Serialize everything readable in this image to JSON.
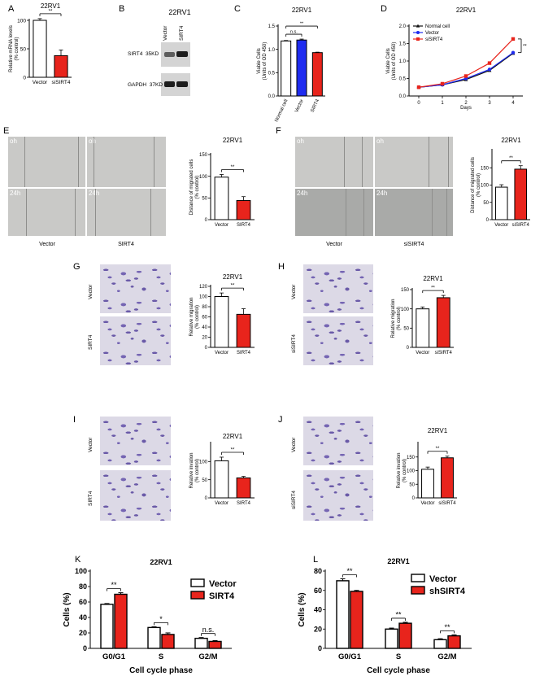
{
  "labels": {
    "A": "A",
    "B": "B",
    "C": "C",
    "D": "D",
    "E": "E",
    "F": "F",
    "G": "G",
    "H": "H",
    "I": "I",
    "J": "J",
    "K": "K",
    "L": "L"
  },
  "cell_line": "22RV1",
  "western": {
    "lanes": [
      "Vector",
      "SIRT4"
    ],
    "rows": [
      {
        "name": "SIRT4",
        "kd": "35KD"
      },
      {
        "name": "GAPDH",
        "kd": "37KD"
      }
    ]
  },
  "scratch": {
    "E": {
      "top": "oh",
      "bottom": "24h",
      "left": "Vector",
      "right": "SIRT4"
    },
    "F": {
      "top": "oh",
      "bottom": "24h",
      "left": "Vector",
      "right": "siSIRT4"
    }
  },
  "micro_labels": {
    "G": [
      "Vector",
      "SIRT4"
    ],
    "H": [
      "Vector",
      "siSIRT4"
    ],
    "I": [
      "Vector",
      "SIRT4"
    ],
    "J": [
      "Vector",
      "siSIRT4"
    ]
  },
  "chart_data": [
    {
      "panel": "A",
      "type": "bar",
      "title": "22RV1",
      "ylabel": "Relative mRNA levels\n(% control)",
      "categories": [
        "Vector",
        "siSIRT4"
      ],
      "values": [
        100,
        38
      ],
      "errors": [
        3,
        10
      ],
      "colors": [
        "#ffffff",
        "#e8241c"
      ],
      "ylim": [
        0,
        100
      ],
      "yticks": [
        0,
        50,
        100
      ],
      "sig": "**"
    },
    {
      "panel": "C",
      "type": "bar",
      "title": "22RV1",
      "ylabel": "Viable Cells\n(Units of OD 450)",
      "categories": [
        "Normal cell",
        "Vector",
        "SIRT4"
      ],
      "values": [
        1.18,
        1.2,
        0.93
      ],
      "errors": [
        0.01,
        0.02,
        0.01
      ],
      "colors": [
        "#ffffff",
        "#1f2cf0",
        "#e8241c"
      ],
      "ylim": [
        0,
        1.5
      ],
      "yticks": [
        0,
        0.5,
        1.0,
        1.5
      ],
      "sig": [
        "n.s.",
        "**"
      ]
    },
    {
      "panel": "D",
      "type": "line",
      "title": "22RV1",
      "xlabel": "Days",
      "ylabel": "Viable Cells\n(Units of OD 450)",
      "x": [
        0,
        1,
        2,
        3,
        4
      ],
      "ylim": [
        0,
        2.0
      ],
      "yticks": [
        0,
        0.5,
        1.0,
        1.5,
        2.0
      ],
      "series": [
        {
          "name": "Normal cell",
          "values": [
            0.25,
            0.32,
            0.47,
            0.73,
            1.22
          ],
          "color": "#111111",
          "marker": "triangle"
        },
        {
          "name": "Vector",
          "values": [
            0.25,
            0.32,
            0.5,
            0.76,
            1.24
          ],
          "color": "#1f2cf0",
          "marker": "circle"
        },
        {
          "name": "siSIRT4",
          "values": [
            0.25,
            0.35,
            0.57,
            0.94,
            1.63
          ],
          "color": "#e8241c",
          "marker": "square"
        }
      ],
      "sig": "**"
    },
    {
      "panel": "E",
      "type": "bar",
      "title": "22RV1",
      "ylabel": "Distance of migrated cells\n(% control)",
      "categories": [
        "Vector",
        "SIRT4"
      ],
      "values": [
        98,
        44
      ],
      "errors": [
        6,
        9
      ],
      "colors": [
        "#ffffff",
        "#e8241c"
      ],
      "ylim": [
        0,
        150
      ],
      "yticks": [
        0,
        50,
        100,
        150
      ],
      "sig": "**"
    },
    {
      "panel": "F",
      "type": "bar",
      "title": "22RV1",
      "ylabel": "Distance of migrated cells\n(% control)",
      "categories": [
        "Vector",
        "siSIRT4"
      ],
      "values": [
        94,
        146
      ],
      "errors": [
        7,
        10
      ],
      "colors": [
        "#ffffff",
        "#e8241c"
      ],
      "ylim": [
        0,
        200
      ],
      "yticks": [
        0,
        50,
        100,
        150
      ],
      "sig": "**"
    },
    {
      "panel": "G",
      "type": "bar",
      "title": "22RV1",
      "ylabel": "Relative migration\n(% control)",
      "categories": [
        "Vector",
        "SIRT4"
      ],
      "values": [
        100,
        65
      ],
      "errors": [
        7,
        11
      ],
      "colors": [
        "#ffffff",
        "#e8241c"
      ],
      "ylim": [
        0,
        120
      ],
      "yticks": [
        0,
        20,
        40,
        60,
        80,
        100,
        120
      ],
      "sig": "**"
    },
    {
      "panel": "H",
      "type": "bar",
      "title": "22RV1",
      "ylabel": "Relative migration\n(% control)",
      "categories": [
        "Vector",
        "siSIRT4"
      ],
      "values": [
        100,
        129
      ],
      "errors": [
        5,
        6
      ],
      "colors": [
        "#ffffff",
        "#e8241c"
      ],
      "ylim": [
        0,
        150
      ],
      "yticks": [
        0,
        50,
        100,
        150
      ],
      "sig": "**"
    },
    {
      "panel": "I",
      "type": "bar",
      "title": "22RV1",
      "ylabel": "Relative invation\n(% control)",
      "categories": [
        "Vector",
        "SIRT4"
      ],
      "values": [
        102,
        55
      ],
      "errors": [
        10,
        4
      ],
      "colors": [
        "#ffffff",
        "#e8241c"
      ],
      "ylim": [
        0,
        150
      ],
      "yticks": [
        0,
        50,
        100
      ],
      "sig": "**"
    },
    {
      "panel": "J",
      "type": "bar",
      "title": "22RV1",
      "ylabel": "Relative invation\n(% control)",
      "categories": [
        "Vector",
        "siSIRT4"
      ],
      "values": [
        105,
        147
      ],
      "errors": [
        8,
        6
      ],
      "colors": [
        "#ffffff",
        "#e8241c"
      ],
      "ylim": [
        0,
        200
      ],
      "yticks": [
        0,
        50,
        100,
        150
      ],
      "sig": "**"
    },
    {
      "panel": "K",
      "type": "bar",
      "title": "22RV1",
      "xlabel": "Cell cycle  phase",
      "ylabel": "Cells (%)",
      "categories": [
        "G0/G1",
        "S",
        "G2/M"
      ],
      "ylim": [
        0,
        100
      ],
      "yticks": [
        0,
        20,
        40,
        60,
        80,
        100
      ],
      "series": [
        {
          "name": "Vector",
          "values": [
            57,
            27,
            13
          ],
          "errors": [
            1,
            1,
            1
          ],
          "color": "#ffffff"
        },
        {
          "name": "SIRT4",
          "values": [
            70,
            18,
            9
          ],
          "errors": [
            2,
            2,
            1
          ],
          "color": "#e8241c"
        }
      ],
      "sig": [
        "**",
        "*",
        "n.s."
      ]
    },
    {
      "panel": "L",
      "type": "bar",
      "title": "22RV1",
      "xlabel": "Cell cycle  phase",
      "ylabel": "Cells (%)",
      "categories": [
        "G0/G1",
        "S",
        "G2/M"
      ],
      "ylim": [
        0,
        80
      ],
      "yticks": [
        0,
        20,
        40,
        60,
        80
      ],
      "series": [
        {
          "name": "Vector",
          "values": [
            70,
            20,
            9
          ],
          "errors": [
            2,
            1,
            1
          ],
          "color": "#ffffff"
        },
        {
          "name": "shSIRT4",
          "values": [
            59,
            26,
            13
          ],
          "errors": [
            1,
            1,
            1
          ],
          "color": "#e8241c"
        }
      ],
      "sig": [
        "**",
        "**",
        "**"
      ]
    }
  ]
}
